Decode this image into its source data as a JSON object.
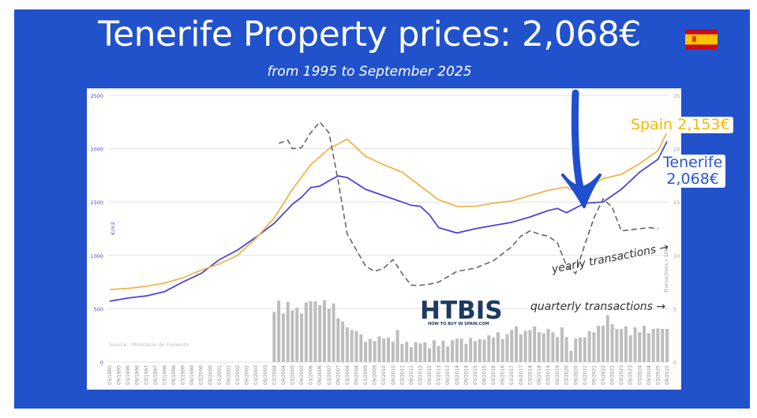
{
  "title": "Tenerife Property prices: 2,068€",
  "subtitle": "from 1995 to September 2025",
  "flag_icon": "spain-flag",
  "callouts": {
    "spain": "Spain 2,153€",
    "tenerife_line1": "Tenerife",
    "tenerife_line2": "2,068€"
  },
  "logo": {
    "text": "HTBIS",
    "tagline": "HOW TO BUY IN SPAIN.COM"
  },
  "colors": {
    "background": "#2152cc",
    "tenerife": "#4b45d8",
    "spain": "#f0b44c",
    "transactions_yearly": "#666666",
    "transactions_quarterly": "#bdbdbd",
    "arrow": "#1f4fcc"
  },
  "chart_data": {
    "type": "line+bar",
    "ylabel_left": "€/m2",
    "ylabel_right": "Transactions x 1000",
    "ylim_left": [
      0,
      2500
    ],
    "ylim_right": [
      0,
      25
    ],
    "yticks_left": [
      "0",
      "500",
      "1000",
      "1500",
      "2000",
      "2500"
    ],
    "yticks_right": [
      "0",
      "5",
      "10",
      "15",
      "20",
      "25"
    ],
    "grid": true,
    "source": "Source : Ministerio de Fomento",
    "annotations": {
      "yearly": "yearly transactions →",
      "quarterly": "quarterly transactions →"
    },
    "series": [
      {
        "name": "Tenerife",
        "kind": "line",
        "axis": "left",
        "x": [
          "03/1995",
          "03/1996",
          "03/1997",
          "03/1998",
          "03/1999",
          "03/2000",
          "03/2001",
          "03/2002",
          "03/2003",
          "03/2004",
          "03/2005",
          "09/2005",
          "03/2006",
          "09/2006",
          "03/2007",
          "09/2007",
          "03/2008",
          "03/2009",
          "03/2010",
          "03/2011",
          "09/2011",
          "03/2012",
          "09/2012",
          "03/2013",
          "03/2014",
          "03/2015",
          "03/2016",
          "03/2017",
          "03/2018",
          "03/2019",
          "09/2019",
          "03/2020",
          "03/2021",
          "03/2022",
          "03/2023",
          "03/2024",
          "03/2025",
          "09/2025"
        ],
        "values": [
          570,
          600,
          620,
          660,
          750,
          830,
          960,
          1050,
          1170,
          1300,
          1480,
          1545,
          1635,
          1650,
          1700,
          1745,
          1730,
          1620,
          1560,
          1500,
          1470,
          1460,
          1380,
          1260,
          1210,
          1250,
          1280,
          1310,
          1360,
          1420,
          1440,
          1400,
          1490,
          1500,
          1620,
          1780,
          1900,
          2068
        ]
      },
      {
        "name": "Spain",
        "kind": "line",
        "axis": "left",
        "x": [
          "03/1995",
          "03/1996",
          "03/1997",
          "03/1998",
          "03/1999",
          "03/2000",
          "03/2001",
          "03/2002",
          "03/2003",
          "03/2004",
          "03/2005",
          "03/2006",
          "03/2007",
          "03/2008",
          "03/2009",
          "03/2010",
          "03/2011",
          "03/2012",
          "03/2013",
          "03/2014",
          "03/2015",
          "03/2016",
          "03/2017",
          "03/2018",
          "03/2019",
          "03/2020",
          "09/2020",
          "03/2021",
          "03/2022",
          "03/2023",
          "03/2024",
          "03/2025",
          "09/2025"
        ],
        "values": [
          680,
          690,
          710,
          740,
          790,
          860,
          920,
          1000,
          1160,
          1350,
          1620,
          1850,
          2000,
          2090,
          1930,
          1850,
          1780,
          1650,
          1520,
          1460,
          1460,
          1490,
          1510,
          1560,
          1610,
          1640,
          1600,
          1620,
          1720,
          1760,
          1860,
          1980,
          2153
        ]
      },
      {
        "name": "yearly transactions",
        "kind": "dashed-line",
        "axis": "right",
        "x": [
          "06/2004",
          "12/2004",
          "03/2005",
          "09/2005",
          "03/2006",
          "09/2006",
          "03/2007",
          "09/2007",
          "03/2008",
          "03/2009",
          "09/2009",
          "03/2010",
          "09/2010",
          "03/2011",
          "09/2011",
          "03/2012",
          "09/2012",
          "03/2013",
          "03/2014",
          "03/2015",
          "03/2016",
          "03/2017",
          "09/2017",
          "03/2018",
          "09/2018",
          "03/2019",
          "09/2019",
          "03/2020",
          "09/2020",
          "03/2021",
          "09/2021",
          "03/2022",
          "09/2022",
          "03/2023",
          "03/2024",
          "09/2024",
          "03/2025"
        ],
        "values": [
          20.5,
          20.8,
          20,
          20.1,
          21.5,
          22.5,
          21.5,
          17,
          12,
          9,
          8.5,
          8.8,
          9.6,
          8.3,
          7.2,
          7.2,
          7.3,
          7.5,
          8.5,
          8.8,
          9.5,
          10.8,
          11.8,
          12.3,
          12,
          11.8,
          11.2,
          9,
          8.3,
          11,
          13.5,
          15.3,
          14.5,
          12.3,
          12.5,
          12.6,
          12.5
        ]
      },
      {
        "name": "quarterly transactions",
        "kind": "bar",
        "axis": "right",
        "start": "03/2004",
        "frequency": "quarterly",
        "values": [
          4.7,
          5.75,
          4.55,
          5.65,
          4.85,
          5.1,
          4.55,
          5.6,
          5.7,
          5.7,
          5.35,
          5.8,
          5.0,
          5.5,
          4.1,
          3.8,
          3.25,
          3.0,
          2.9,
          2.6,
          1.9,
          2.15,
          1.95,
          2.4,
          2.2,
          2.3,
          1.9,
          3.0,
          1.7,
          1.9,
          1.4,
          1.85,
          1.75,
          1.85,
          1.3,
          2.05,
          1.5,
          2.0,
          1.45,
          2.05,
          2.2,
          2.2,
          1.7,
          2.25,
          1.95,
          2.15,
          2.1,
          2.5,
          2.3,
          2.8,
          2.15,
          2.6,
          3.0,
          3.35,
          2.6,
          2.95,
          3.0,
          3.35,
          2.8,
          2.7,
          3.1,
          2.8,
          2.35,
          3.25,
          2.35,
          1.05,
          2.2,
          2.3,
          2.3,
          2.9,
          2.8,
          3.4,
          3.4,
          4.4,
          3.55,
          3.1,
          3.1,
          3.35,
          2.5,
          3.25,
          2.8,
          3.4,
          2.7,
          3.1,
          3.15,
          3.1,
          3.1
        ]
      }
    ]
  }
}
